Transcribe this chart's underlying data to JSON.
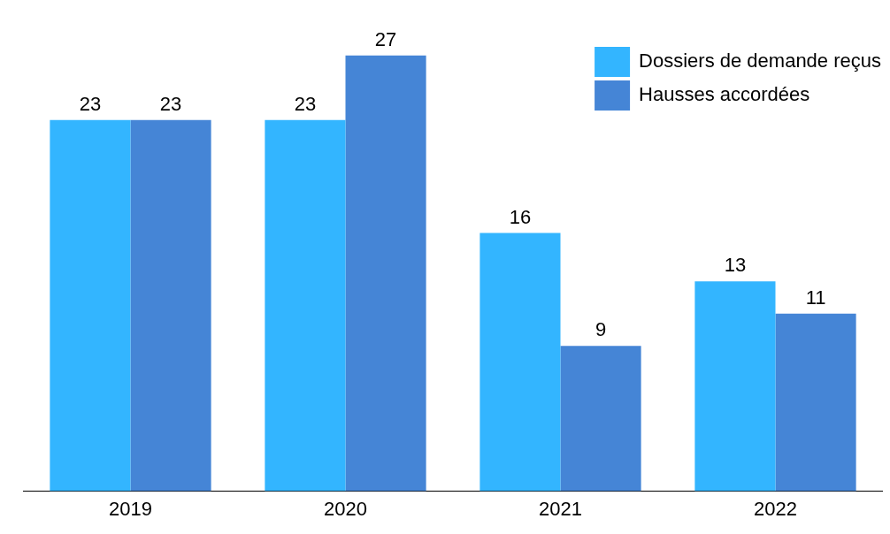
{
  "chart_data": {
    "type": "bar",
    "categories": [
      "2019",
      "2020",
      "2021",
      "2022"
    ],
    "series": [
      {
        "name": "Dossiers de demande reçus",
        "color": "#33b5ff",
        "values": [
          23,
          23,
          16,
          13
        ]
      },
      {
        "name": "Hausses accordées",
        "color": "#4585d6",
        "values": [
          23,
          27,
          9,
          11
        ]
      }
    ],
    "tick_labels": "x",
    "grid": false,
    "legend": "top right",
    "data_labels": true
  }
}
